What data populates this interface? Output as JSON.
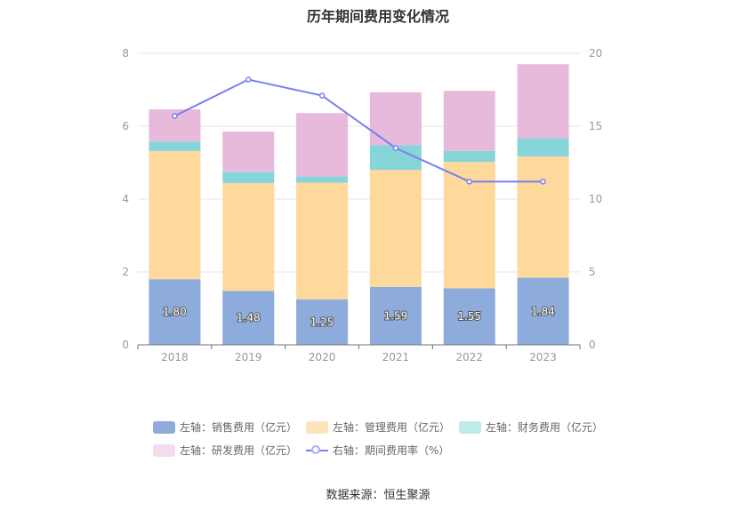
{
  "title": "历年期间费用变化情况",
  "source": "数据来源：恒生聚源",
  "colors": {
    "sales": "#8dacdc",
    "admin": "#ffd89c",
    "finance": "#86d6d9",
    "rd": "#e7b9da",
    "rate_line": "#7b7ef2",
    "axis_text": "#999999",
    "grid": "#e6e6e6"
  },
  "legend": [
    {
      "label": "左轴：销售费用（亿元）",
      "color": "#8dacdc",
      "kind": "bar"
    },
    {
      "label": "左轴：管理费用（亿元）",
      "color": "#ffe4bb",
      "kind": "bar"
    },
    {
      "label": "左轴：财务费用（亿元）",
      "color": "#bfeaea",
      "kind": "bar"
    },
    {
      "label": "左轴：研发费用（亿元）",
      "color": "#f3dcec",
      "kind": "bar"
    },
    {
      "label": "右轴：期间费用率（%）",
      "color": "#7b7ef2",
      "kind": "line"
    }
  ],
  "chart_data": {
    "type": "bar",
    "stacked": true,
    "categories": [
      "2018",
      "2019",
      "2020",
      "2021",
      "2022",
      "2023"
    ],
    "series": [
      {
        "name": "左轴：销售费用（亿元）",
        "axis": "left",
        "values": [
          1.8,
          1.48,
          1.25,
          1.59,
          1.55,
          1.84
        ],
        "labels": [
          "1.80",
          "1.48",
          "1.25",
          "1.59",
          "1.55",
          "1.84"
        ]
      },
      {
        "name": "左轴：管理费用（亿元）",
        "axis": "left",
        "values": [
          3.52,
          2.96,
          3.2,
          3.21,
          3.47,
          3.33
        ]
      },
      {
        "name": "左轴：财务费用（亿元）",
        "axis": "left",
        "values": [
          0.26,
          0.3,
          0.17,
          0.68,
          0.3,
          0.5
        ]
      },
      {
        "name": "左轴：研发费用（亿元）",
        "axis": "left",
        "values": [
          0.88,
          1.11,
          1.74,
          1.45,
          1.65,
          2.03
        ]
      },
      {
        "name": "右轴：期间费用率（%）",
        "axis": "right",
        "type": "line",
        "values": [
          15.7,
          18.2,
          17.1,
          13.5,
          11.2,
          11.2
        ]
      }
    ],
    "y_left": {
      "min": 0,
      "max": 8,
      "ticks": [
        "0",
        "2",
        "4",
        "6",
        "8"
      ]
    },
    "y_right": {
      "min": 0,
      "max": 20,
      "ticks": [
        "0",
        "5",
        "10",
        "15",
        "20"
      ]
    },
    "grid": true,
    "legend_position": "bottom"
  }
}
